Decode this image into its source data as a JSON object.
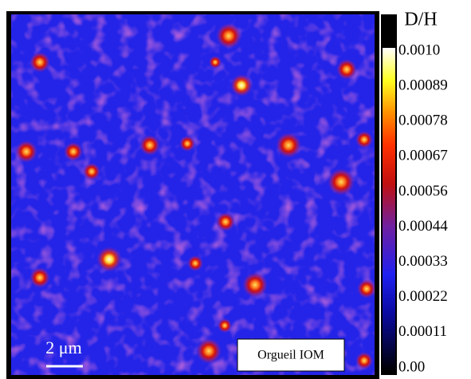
{
  "colorbar": {
    "title": "D/H",
    "ticks": [
      "0.0010",
      "0.00089",
      "0.00078",
      "0.00067",
      "0.00056",
      "0.00044",
      "0.00033",
      "0.00022",
      "0.00011",
      "0.00"
    ]
  },
  "scale_bar": {
    "label": "2 μm"
  },
  "sample_label": "Orgueil IOM"
}
